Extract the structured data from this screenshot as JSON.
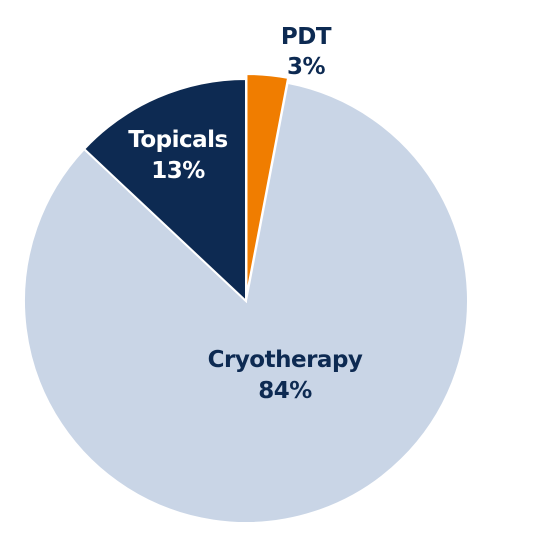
{
  "chart_data": {
    "type": "pie",
    "title": "",
    "slices": [
      {
        "label": "PDT",
        "value": 3,
        "value_label": "3%",
        "color": "#f07d00",
        "exploded": true
      },
      {
        "label": "Cryotherapy",
        "value": 84,
        "value_label": "84%",
        "color": "#c9d5e6",
        "exploded": false
      },
      {
        "label": "Topicals",
        "value": 13,
        "value_label": "13%",
        "color": "#0d2a52",
        "exploded": false
      }
    ],
    "start_angle_deg": 0,
    "direction": "clockwise",
    "legend": "none",
    "label_colors": {
      "on_dark": "#ffffff",
      "on_light": "#0d2a52"
    }
  }
}
